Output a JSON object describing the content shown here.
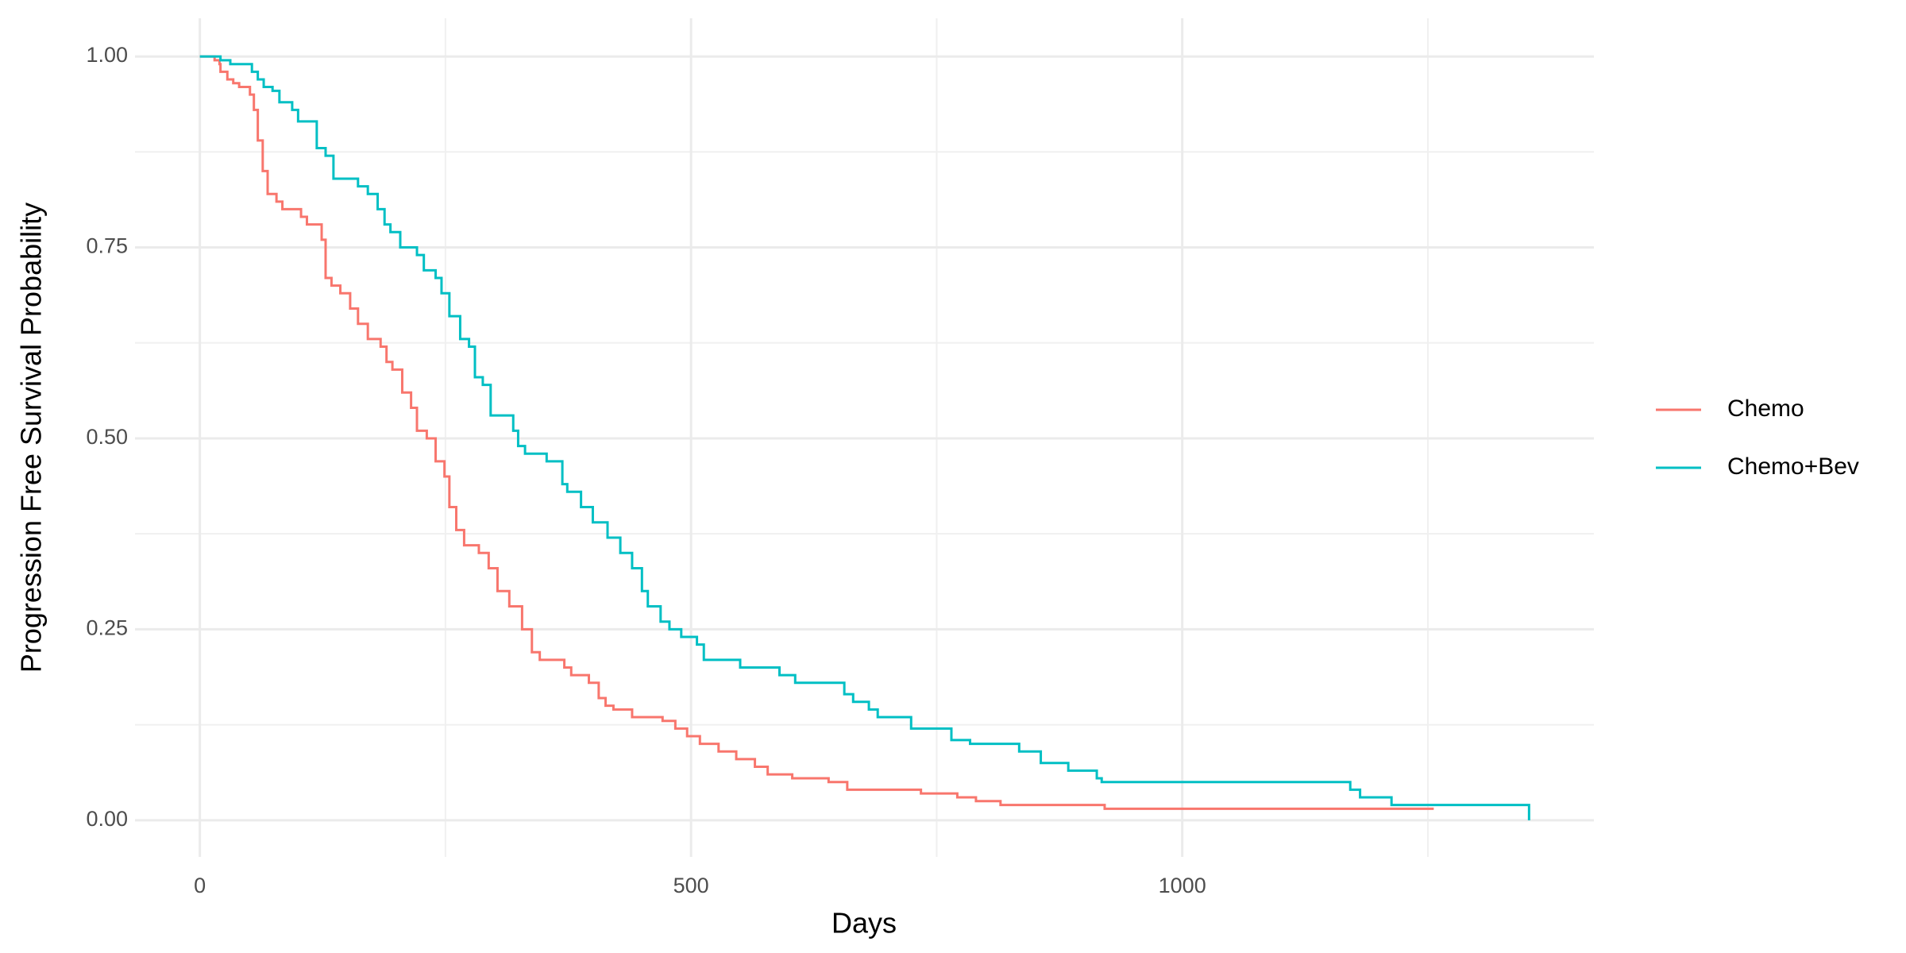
{
  "chart_data": {
    "type": "step",
    "x_label": "Days",
    "y_label": "Progression Free Survival Probability",
    "xlim": [
      -66,
      1419
    ],
    "ylim": [
      -0.048,
      1.05
    ],
    "xticks": [
      0,
      500,
      1000
    ],
    "yticks": [
      {
        "value": 0,
        "label": "0.00"
      },
      0.25,
      {
        "value": 0.5,
        "label": "0.50"
      },
      0.75,
      {
        "value": 1,
        "label": "1.00"
      }
    ],
    "x_minor_ticks": [
      250,
      750,
      1250
    ],
    "y_minor_ticks": [
      0.125,
      0.375,
      0.625,
      0.875
    ],
    "grid": true,
    "legend": "right",
    "series": [
      {
        "name": "Chemo",
        "color": "#F8766D",
        "x": [
          0,
          15,
          20,
          21,
          28,
          34,
          40,
          51,
          55,
          59,
          64,
          69,
          78,
          84,
          103,
          109,
          124,
          128,
          134,
          143,
          153,
          161,
          171,
          184,
          190,
          196,
          206,
          215,
          221,
          231,
          240,
          249,
          254,
          261,
          269,
          284,
          294,
          303,
          315,
          328,
          338,
          346,
          371,
          378,
          396,
          406,
          413,
          421,
          440,
          471,
          484,
          496,
          509,
          528,
          546,
          565,
          578,
          603,
          640,
          659,
          734,
          771,
          790,
          815,
          921,
          1256
        ],
        "values": [
          1,
          0.995,
          0.99,
          0.98,
          0.97,
          0.965,
          0.96,
          0.95,
          0.93,
          0.89,
          0.85,
          0.82,
          0.81,
          0.8,
          0.79,
          0.78,
          0.76,
          0.71,
          0.7,
          0.69,
          0.67,
          0.65,
          0.63,
          0.62,
          0.6,
          0.59,
          0.56,
          0.54,
          0.51,
          0.5,
          0.47,
          0.45,
          0.41,
          0.38,
          0.36,
          0.35,
          0.33,
          0.3,
          0.28,
          0.25,
          0.22,
          0.21,
          0.2,
          0.19,
          0.18,
          0.16,
          0.15,
          0.145,
          0.135,
          0.13,
          0.12,
          0.11,
          0.1,
          0.09,
          0.08,
          0.07,
          0.06,
          0.055,
          0.05,
          0.04,
          0.035,
          0.03,
          0.025,
          0.02,
          0.015,
          0.015
        ]
      },
      {
        "name": "Chemo+Bev",
        "color": "#00BFC4",
        "x": [
          0,
          21,
          31,
          53,
          59,
          65,
          74,
          81,
          94,
          100,
          119,
          128,
          136,
          161,
          171,
          181,
          188,
          194,
          204,
          221,
          228,
          240,
          246,
          254,
          265,
          274,
          280,
          288,
          296,
          319,
          324,
          331,
          353,
          369,
          374,
          388,
          400,
          415,
          428,
          440,
          450,
          456,
          469,
          478,
          490,
          506,
          513,
          550,
          590,
          606,
          656,
          665,
          681,
          690,
          724,
          765,
          784,
          834,
          856,
          884,
          913,
          918,
          1171,
          1181,
          1213,
          1353,
          1353
        ],
        "values": [
          1,
          0.995,
          0.99,
          0.98,
          0.97,
          0.96,
          0.955,
          0.94,
          0.93,
          0.915,
          0.88,
          0.87,
          0.84,
          0.83,
          0.82,
          0.8,
          0.78,
          0.77,
          0.75,
          0.74,
          0.72,
          0.71,
          0.69,
          0.66,
          0.63,
          0.62,
          0.58,
          0.57,
          0.53,
          0.51,
          0.49,
          0.48,
          0.47,
          0.44,
          0.43,
          0.41,
          0.39,
          0.37,
          0.35,
          0.33,
          0.3,
          0.28,
          0.26,
          0.25,
          0.24,
          0.23,
          0.21,
          0.2,
          0.19,
          0.18,
          0.165,
          0.155,
          0.145,
          0.135,
          0.12,
          0.105,
          0.1,
          0.09,
          0.075,
          0.065,
          0.055,
          0.05,
          0.04,
          0.03,
          0.02,
          0.02,
          0
        ]
      }
    ]
  }
}
